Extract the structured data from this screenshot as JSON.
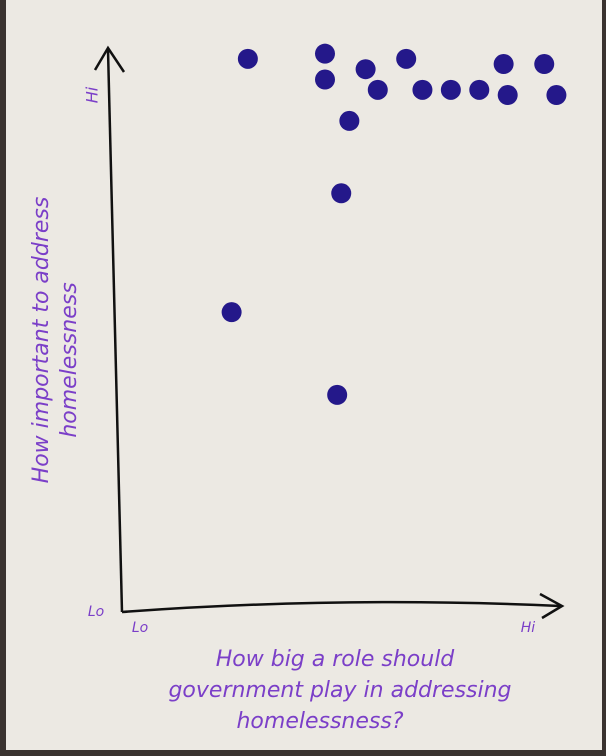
{
  "chart_data": {
    "type": "scatter",
    "xlabel": [
      "How big a role should",
      "government play in addressing",
      "homelessness?"
    ],
    "ylabel": [
      "How important to address",
      "homelessness"
    ],
    "x": [
      3.1,
      5.0,
      5.0,
      6.0,
      6.3,
      7.0,
      7.4,
      8.1,
      8.8,
      9.4,
      9.5,
      10.4,
      10.7,
      5.6,
      5.4,
      2.7,
      5.3
    ],
    "values": [
      10.7,
      10.8,
      10.3,
      10.5,
      10.1,
      10.7,
      10.1,
      10.1,
      10.1,
      10.6,
      10.0,
      10.6,
      10.0,
      9.5,
      8.1,
      5.8,
      4.2
    ],
    "color": "#24188a",
    "xlim": [
      0,
      11
    ],
    "ylim": [
      0,
      11.2
    ],
    "xticks": [
      {
        "value": 0,
        "label": "Lo"
      },
      {
        "value": 10,
        "label": "Hi"
      }
    ],
    "yticks": [
      {
        "value": 0,
        "label": "Lo"
      },
      {
        "value": 10,
        "label": "Hi"
      }
    ]
  }
}
